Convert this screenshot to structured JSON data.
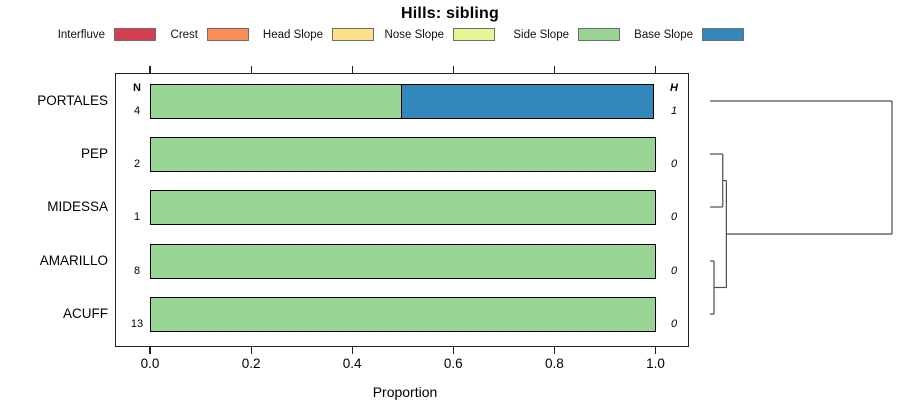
{
  "title": "Hills: sibling",
  "legend": {
    "items": [
      {
        "label": "Interfluve",
        "color": "#D53E4F"
      },
      {
        "label": "Crest",
        "color": "#FC8D59"
      },
      {
        "label": "Head Slope",
        "color": "#FEE08B"
      },
      {
        "label": "Nose Slope",
        "color": "#E6F598"
      },
      {
        "label": "Side Slope",
        "color": "#99D594"
      },
      {
        "label": "Base Slope",
        "color": "#3288BD"
      }
    ]
  },
  "chart_data": {
    "type": "bar",
    "subtype": "horizontal_stacked_proportion",
    "title": "Hills: sibling",
    "xlabel": "Proportion",
    "xlim": [
      0,
      1
    ],
    "xticks": [
      "0.0",
      "0.2",
      "0.4",
      "0.6",
      "0.8",
      "1.0"
    ],
    "grid": false,
    "legend_position": "top",
    "left_column_header": "N",
    "right_column_header": "H",
    "rows": [
      {
        "name": "PORTALES",
        "n": "4",
        "h": "1",
        "segments": [
          {
            "class": "Side Slope",
            "value": 0.5
          },
          {
            "class": "Base Slope",
            "value": 0.5
          }
        ]
      },
      {
        "name": "PEP",
        "n": "2",
        "h": "0",
        "segments": [
          {
            "class": "Side Slope",
            "value": 1.0
          }
        ]
      },
      {
        "name": "MIDESSA",
        "n": "1",
        "h": "0",
        "segments": [
          {
            "class": "Side Slope",
            "value": 1.0
          }
        ]
      },
      {
        "name": "AMARILLO",
        "n": "8",
        "h": "0",
        "segments": [
          {
            "class": "Side Slope",
            "value": 1.0
          }
        ]
      },
      {
        "name": "ACUFF",
        "n": "13",
        "h": "0",
        "segments": [
          {
            "class": "Side Slope",
            "value": 1.0
          }
        ]
      }
    ],
    "dendrogram": {
      "orientation": "right",
      "leaves": [
        "PORTALES",
        "PEP",
        "MIDESSA",
        "AMARILLO",
        "ACUFF"
      ],
      "merges": [
        {
          "a": "L1",
          "b": "L2",
          "height": 0.07
        },
        {
          "a": "L3",
          "b": "L4",
          "height": 0.022
        },
        {
          "a": "M0",
          "b": "M1",
          "height": 0.09
        },
        {
          "a": "L0",
          "b": "M2",
          "height": 1.0
        }
      ]
    }
  }
}
